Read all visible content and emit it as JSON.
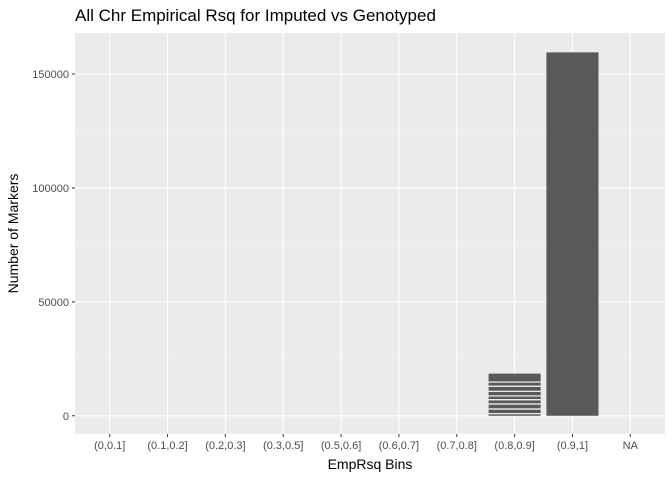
{
  "chart_data": {
    "type": "bar",
    "title": "All Chr Empirical Rsq for Imputed vs Genotyped",
    "xlabel": "EmpRsq Bins",
    "ylabel": "Number of Markers",
    "categories": [
      "(0,0.1]",
      "(0.1,0.2]",
      "(0.2,0.3]",
      "(0.3,0.5]",
      "(0.5,0.6]",
      "(0.6,0.7]",
      "(0.7,0.8]",
      "(0.8,0.9]",
      "(0.9,1]",
      "NA"
    ],
    "values": [
      0,
      0,
      0,
      0,
      0,
      0,
      0,
      18500,
      159500,
      0
    ],
    "yticks": [
      0,
      50000,
      100000,
      150000
    ],
    "ytick_labels": [
      "0",
      "50000",
      "100000",
      "150000"
    ],
    "ylim": [
      -8000,
      168000
    ],
    "grid": true,
    "colors": {
      "panel_background": "#ebebeb",
      "grid_major": "#ffffff",
      "grid_minor": "#f5f5f5",
      "bar_fill": "#595959",
      "stacked_edge": "#ffffff"
    }
  }
}
